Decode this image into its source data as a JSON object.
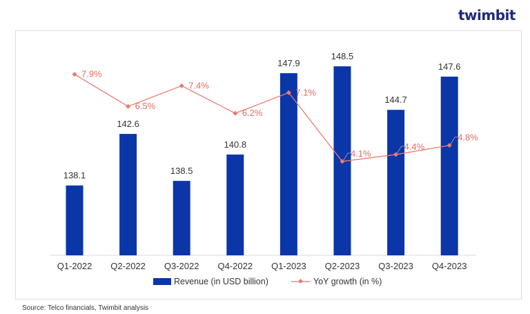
{
  "logo": "twimbit",
  "source": "Source: Telco financials, Twimbit analysis",
  "colors": {
    "bar": "#0a36a8",
    "line": "#ea7b70",
    "line_label": "#e46b63"
  },
  "chart_data": {
    "type": "bar",
    "categories": [
      "Q1-2022",
      "Q2-2022",
      "Q3-2022",
      "Q4-2022",
      "Q1-2023",
      "Q2-2023",
      "Q3-2023",
      "Q4-2023"
    ],
    "series": [
      {
        "name": "Revenue (in USD billion)",
        "type": "bar",
        "axis": "primary",
        "values": [
          138.1,
          142.6,
          138.5,
          140.8,
          147.9,
          148.5,
          144.7,
          147.6
        ],
        "labels": [
          "138.1",
          "142.6",
          "138.5",
          "140.8",
          "147.9",
          "148.5",
          "144.7",
          "147.6"
        ]
      },
      {
        "name": "YoY growth (in %)",
        "type": "line",
        "axis": "secondary",
        "values": [
          7.9,
          6.5,
          7.4,
          6.2,
          7.1,
          4.1,
          4.4,
          4.8
        ],
        "labels": [
          "7.9%",
          "6.5%",
          "7.4%",
          "6.2%",
          "7.1%",
          "4.1%",
          "4.4%",
          "4.8%"
        ]
      }
    ],
    "ylim": [
      132,
      152
    ],
    "y2lim": [
      0,
      10
    ],
    "grid": false,
    "legend": "bottom"
  }
}
